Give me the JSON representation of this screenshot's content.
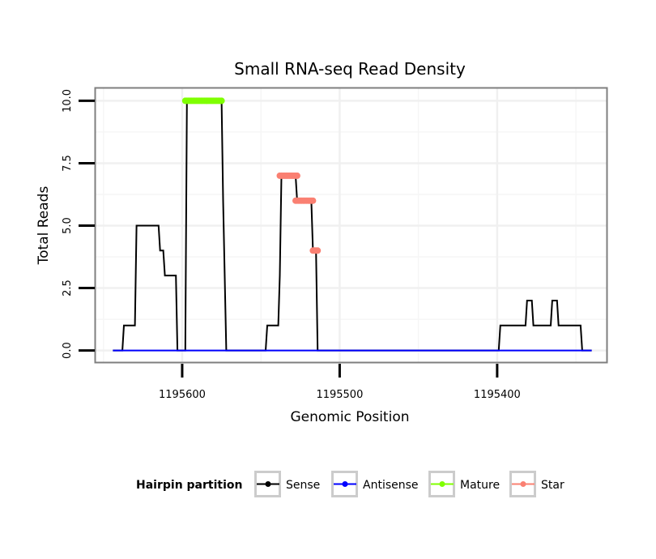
{
  "chart_data": {
    "type": "line",
    "title": "Small RNA-seq Read Density",
    "xlabel": "Genomic Position",
    "ylabel": "Total Reads",
    "xlim": [
      1195655,
      1195330
    ],
    "x_reversed": true,
    "ylim": [
      -0.5,
      10.5
    ],
    "grid": true,
    "x_ticks": [
      1195600,
      1195500,
      1195400
    ],
    "x_tick_labels": [
      "1195600",
      "1195500",
      "1195400"
    ],
    "y_ticks": [
      0,
      2.5,
      5,
      7.5,
      10
    ],
    "y_tick_labels": [
      "0.0",
      "2.5",
      "5.0",
      "7.5",
      "10.0"
    ],
    "legend": {
      "title": "Hairpin partition",
      "placement": "bottom",
      "entries": [
        {
          "label": "Sense",
          "color": "#000000"
        },
        {
          "label": "Antisense",
          "color": "#0000ff"
        },
        {
          "label": "Mature",
          "color": "#7fff00"
        },
        {
          "label": "Star",
          "color": "#fa8072"
        }
      ]
    },
    "series": [
      {
        "name": "Sense",
        "color": "#000000",
        "style": "line",
        "points": [
          [
            1195644,
            0
          ],
          [
            1195638,
            0
          ],
          [
            1195637,
            1
          ],
          [
            1195630,
            1
          ],
          [
            1195629,
            5
          ],
          [
            1195615,
            5
          ],
          [
            1195614,
            4
          ],
          [
            1195612,
            4
          ],
          [
            1195611,
            3
          ],
          [
            1195604,
            3
          ],
          [
            1195603,
            0
          ],
          [
            1195598,
            0
          ],
          [
            1195597,
            10
          ],
          [
            1195575,
            10
          ],
          [
            1195574,
            6
          ],
          [
            1195572,
            0
          ],
          [
            1195547,
            0
          ],
          [
            1195546,
            1
          ],
          [
            1195539,
            1
          ],
          [
            1195538,
            3
          ],
          [
            1195537,
            7
          ],
          [
            1195528,
            7
          ],
          [
            1195527,
            6
          ],
          [
            1195518,
            6
          ],
          [
            1195517,
            4
          ],
          [
            1195515,
            4
          ],
          [
            1195514,
            0
          ],
          [
            1195399,
            0
          ],
          [
            1195398,
            1
          ],
          [
            1195382,
            1
          ],
          [
            1195381,
            2
          ],
          [
            1195378,
            2
          ],
          [
            1195377,
            1
          ],
          [
            1195366,
            1
          ],
          [
            1195365,
            2
          ],
          [
            1195362,
            2
          ],
          [
            1195361,
            1
          ],
          [
            1195347,
            1
          ],
          [
            1195346,
            0
          ],
          [
            1195340,
            0
          ]
        ]
      },
      {
        "name": "Antisense",
        "color": "#0000ff",
        "style": "line",
        "points": [
          [
            1195644,
            0
          ],
          [
            1195340,
            0
          ]
        ]
      },
      {
        "name": "Mature",
        "color": "#7fff00",
        "style": "points",
        "segments": [
          {
            "x_from": 1195598,
            "x_to": 1195575,
            "y": 10
          }
        ]
      },
      {
        "name": "Star",
        "color": "#fa8072",
        "style": "points",
        "segments": [
          {
            "x_from": 1195538,
            "x_to": 1195527,
            "y": 7
          },
          {
            "x_from": 1195528,
            "x_to": 1195517,
            "y": 6
          },
          {
            "x_from": 1195517,
            "x_to": 1195514,
            "y": 4
          }
        ]
      }
    ]
  }
}
